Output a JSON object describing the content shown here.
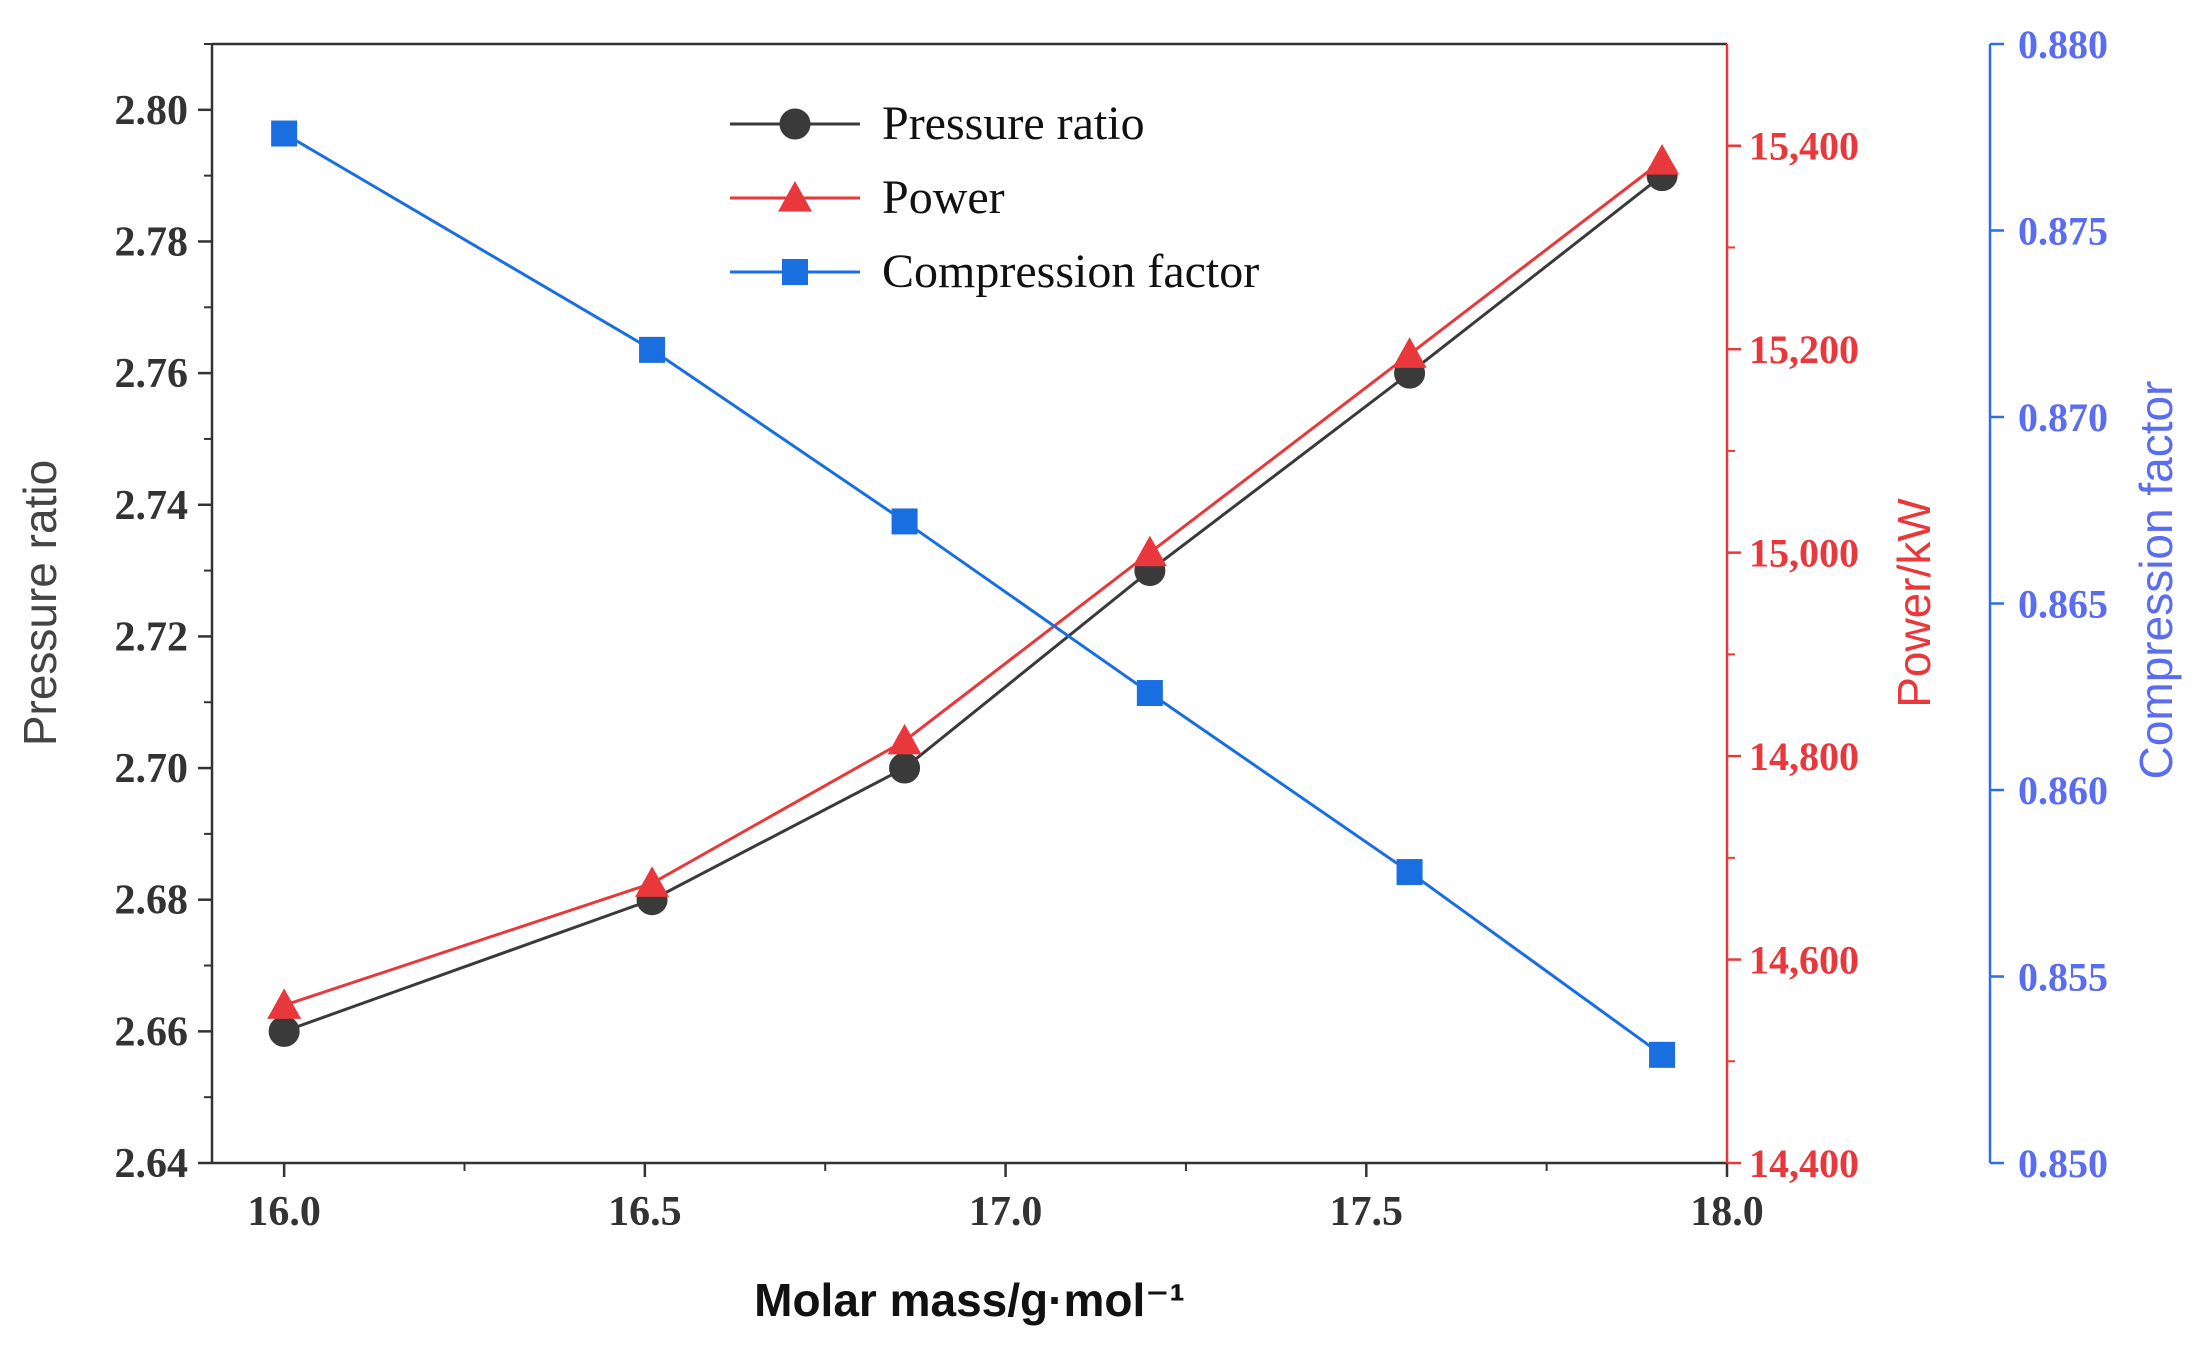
{
  "chart_data": {
    "type": "line",
    "x": [
      16.0,
      16.51,
      16.86,
      17.2,
      17.56,
      17.91
    ],
    "xlabel": "Molar mass/g·mol⁻¹",
    "xlim": [
      15.9,
      18.0
    ],
    "xticks": [
      "16.0",
      "16.5",
      "17.0",
      "17.5",
      "18.0"
    ],
    "grid": false,
    "legend_position": "top-center",
    "series": [
      {
        "name": "Pressure ratio",
        "axis": "left",
        "marker": "circle",
        "color": "#3a3a3a",
        "values": [
          2.66,
          2.68,
          2.7,
          2.73,
          2.76,
          2.79
        ]
      },
      {
        "name": "Power",
        "axis": "right",
        "marker": "triangle",
        "color": "#e8383b",
        "values": [
          14555,
          14675,
          14815,
          15000,
          15195,
          15385
        ]
      },
      {
        "name": "Compression factor",
        "axis": "right2",
        "marker": "square",
        "color": "#1a6fe0",
        "values": [
          0.8776,
          0.8718,
          0.8672,
          0.8626,
          0.8578,
          0.8529
        ]
      }
    ],
    "axes": {
      "left": {
        "label": "Pressure ratio",
        "ylim": [
          2.64,
          2.81
        ],
        "ticks": [
          "2.64",
          "2.66",
          "2.68",
          "2.70",
          "2.72",
          "2.74",
          "2.76",
          "2.78",
          "2.80"
        ],
        "color": "#3a3a3a"
      },
      "right": {
        "label": "Power/kW",
        "ylim": [
          14400,
          15500
        ],
        "ticks": [
          "14,400",
          "14,600",
          "14,800",
          "15,000",
          "15,200",
          "15,400"
        ],
        "color": "#e8383b"
      },
      "right2": {
        "label": "Compression factor",
        "ylim": [
          0.85,
          0.88
        ],
        "ticks": [
          "0.850",
          "0.855",
          "0.860",
          "0.865",
          "0.870",
          "0.875",
          "0.880"
        ],
        "color": "#5a6cf0"
      }
    }
  }
}
